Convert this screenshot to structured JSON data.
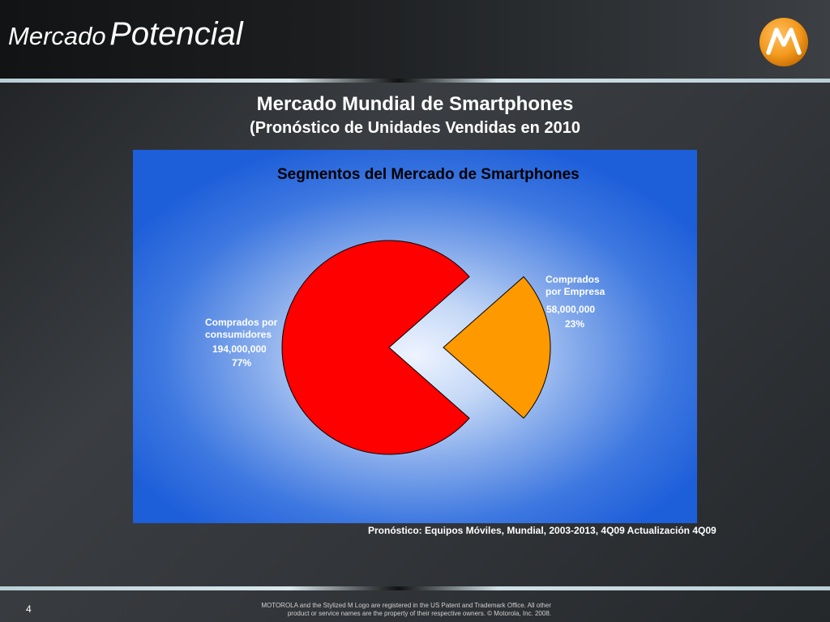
{
  "slide": {
    "title_part1": "Mercado",
    "title_part2": "Potencial",
    "heading_line1": "Mercado Mundial de Smartphones",
    "heading_line2": "(Pronóstico de Unidades Vendidas en 2010",
    "source": "Pronóstico: Equipos Móviles, Mundial, 2003-2013, 4Q09 Actualización 4Q09",
    "page_number": "4",
    "footer_line1": "MOTOROLA and the Stylized M Logo are registered in the US Patent and Trademark Office. All other",
    "footer_line2": "product or service names are the property of their respective owners.  © Motorola, Inc. 2008.",
    "logo_icon": "motorola-m-logo-icon"
  },
  "colors": {
    "consumer_slice": "#ff0000",
    "enterprise_slice": "#ff9900",
    "logo_orange": "#f39a1e"
  },
  "chart_data": {
    "type": "pie",
    "title": "Segmentos del Mercado de Smartphones",
    "slices": [
      {
        "label_line1": "Comprados por",
        "label_line2": "consumidores",
        "value_text": "194,000,000",
        "percent_text": "77%",
        "value": 194000000,
        "percent": 77,
        "exploded": false
      },
      {
        "label_line1": "Comprados",
        "label_line2": "por  Empresa",
        "value_text": "58,000,000",
        "percent_text": "23%",
        "value": 58000000,
        "percent": 23,
        "exploded": true
      }
    ]
  }
}
